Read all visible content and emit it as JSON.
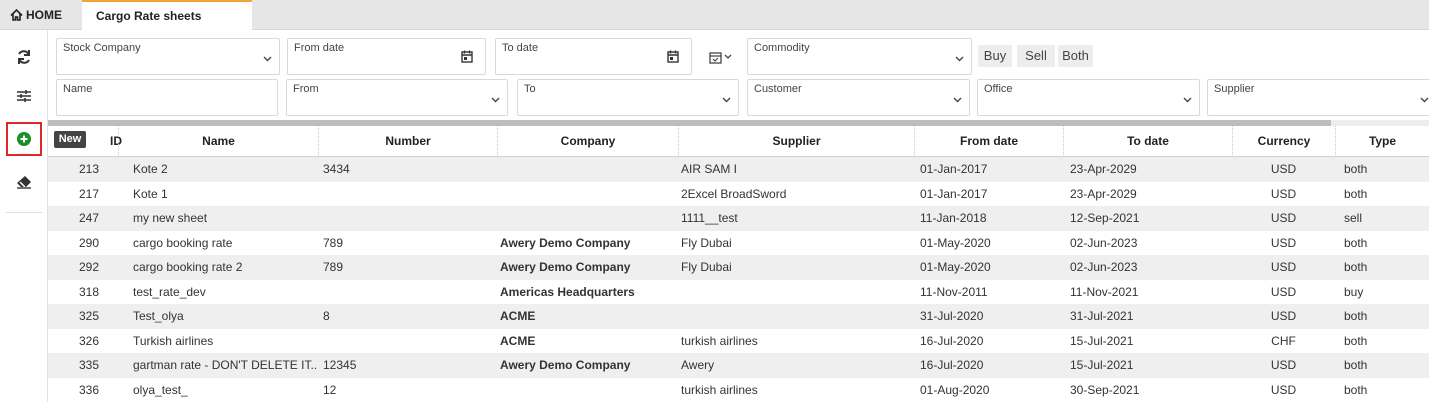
{
  "tabs": {
    "home": "HOME",
    "active": "Cargo Rate sheets"
  },
  "filters": {
    "stock_company": "Stock Company",
    "from_date": "From date",
    "to_date": "To date",
    "commodity": "Commodity",
    "name": "Name",
    "from": "From",
    "to": "To",
    "customer": "Customer",
    "office": "Office",
    "supplier": "Supplier"
  },
  "side_buttons": {
    "buy": "Buy",
    "sell": "Sell",
    "both": "Both"
  },
  "tooltip": "New",
  "table": {
    "columns": [
      "ID",
      "Name",
      "Number",
      "Company",
      "Supplier",
      "From date",
      "To date",
      "Currency",
      "Type"
    ],
    "rows": [
      [
        "213",
        "Kote 2",
        "3434",
        null,
        "AIR SAM I",
        "01-Jan-2017",
        "23-Apr-2029",
        "USD",
        "both"
      ],
      [
        "217",
        "Kote 1",
        null,
        null,
        "2Excel BroadSword",
        "01-Jan-2017",
        "23-Apr-2029",
        "USD",
        "both"
      ],
      [
        "247",
        "my new sheet",
        null,
        null,
        "1111__test",
        "11-Jan-2018",
        "12-Sep-2021",
        "USD",
        "sell"
      ],
      [
        "290",
        "cargo booking rate",
        "789",
        "Awery Demo Company",
        "Fly Dubai",
        "01-May-2020",
        "02-Jun-2023",
        "USD",
        "both"
      ],
      [
        "292",
        "cargo booking rate 2",
        "789",
        "Awery Demo Company",
        "Fly Dubai",
        "01-May-2020",
        "02-Jun-2023",
        "USD",
        "both"
      ],
      [
        "318",
        "test_rate_dev",
        null,
        "Americas Headquarters",
        null,
        "11-Nov-2011",
        "11-Nov-2021",
        "USD",
        "buy"
      ],
      [
        "325",
        "Test_olya",
        "8",
        "ACME",
        null,
        "31-Jul-2020",
        "31-Jul-2021",
        "USD",
        "both"
      ],
      [
        "326",
        "Turkish airlines",
        null,
        "ACME",
        "turkish airlines",
        "16-Jul-2020",
        "15-Jul-2021",
        "CHF",
        "both"
      ],
      [
        "335",
        "gartman rate - DON'T DELETE IT...",
        "12345",
        "Awery Demo Company",
        "Awery",
        "16-Jul-2020",
        "15-Jul-2021",
        "USD",
        "both"
      ],
      [
        "336",
        "olya_test_",
        "12",
        null,
        "turkish airlines",
        "01-Aug-2020",
        "30-Sep-2021",
        "USD",
        "both"
      ]
    ]
  }
}
